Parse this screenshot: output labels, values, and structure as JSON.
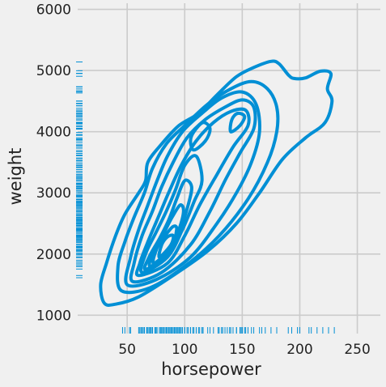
{
  "chart_data": {
    "type": "kde_contour_with_rugplots",
    "title": "",
    "xlabel": "horsepower",
    "ylabel": "weight",
    "xlim": [
      7,
      270
    ],
    "ylim": [
      700,
      6100
    ],
    "xticks": [
      50,
      100,
      150,
      200,
      250
    ],
    "yticks": [
      1000,
      2000,
      3000,
      4000,
      5000,
      6000
    ],
    "grid": true,
    "line_color": "#008fd5",
    "background": "#f0f0f0",
    "grid_color": "#cbcbcb",
    "contours": [
      {
        "level": 1,
        "points": [
          [
            30,
            1200
          ],
          [
            40,
            1180
          ],
          [
            60,
            1300
          ],
          [
            90,
            1650
          ],
          [
            120,
            2050
          ],
          [
            145,
            2500
          ],
          [
            165,
            3000
          ],
          [
            185,
            3550
          ],
          [
            205,
            3900
          ],
          [
            222,
            4150
          ],
          [
            228,
            4500
          ],
          [
            224,
            4700
          ],
          [
            227,
            4950
          ],
          [
            218,
            4990
          ],
          [
            205,
            4880
          ],
          [
            195,
            4870
          ],
          [
            190,
            4930
          ],
          [
            182,
            5110
          ],
          [
            175,
            5150
          ],
          [
            160,
            5050
          ],
          [
            145,
            4900
          ],
          [
            128,
            4600
          ],
          [
            112,
            4300
          ],
          [
            95,
            4100
          ],
          [
            80,
            3800
          ],
          [
            68,
            3500
          ],
          [
            66,
            3200
          ],
          [
            60,
            3000
          ],
          [
            48,
            2650
          ],
          [
            40,
            2300
          ],
          [
            32,
            1850
          ],
          [
            27,
            1500
          ]
        ]
      },
      {
        "level": 2,
        "points": [
          [
            45,
            1400
          ],
          [
            70,
            1450
          ],
          [
            100,
            1800
          ],
          [
            130,
            2300
          ],
          [
            155,
            2900
          ],
          [
            172,
            3500
          ],
          [
            180,
            4000
          ],
          [
            180,
            4400
          ],
          [
            172,
            4700
          ],
          [
            158,
            4820
          ],
          [
            140,
            4700
          ],
          [
            120,
            4450
          ],
          [
            100,
            4100
          ],
          [
            84,
            3800
          ],
          [
            72,
            3400
          ],
          [
            65,
            3000
          ],
          [
            56,
            2600
          ],
          [
            48,
            2200
          ],
          [
            42,
            1800
          ]
        ]
      },
      {
        "level": 3,
        "points": [
          [
            50,
            1500
          ],
          [
            75,
            1580
          ],
          [
            105,
            1950
          ],
          [
            128,
            2500
          ],
          [
            145,
            3000
          ],
          [
            158,
            3500
          ],
          [
            165,
            4000
          ],
          [
            162,
            4450
          ],
          [
            150,
            4650
          ],
          [
            132,
            4550
          ],
          [
            115,
            4300
          ],
          [
            98,
            4000
          ],
          [
            85,
            3600
          ],
          [
            76,
            3200
          ],
          [
            68,
            2800
          ],
          [
            60,
            2400
          ],
          [
            53,
            1950
          ]
        ]
      },
      {
        "level": 4,
        "points": [
          [
            55,
            1550
          ],
          [
            80,
            1700
          ],
          [
            105,
            2150
          ],
          [
            122,
            2700
          ],
          [
            135,
            3200
          ],
          [
            148,
            3650
          ],
          [
            160,
            4050
          ],
          [
            160,
            4400
          ],
          [
            150,
            4520
          ],
          [
            135,
            4400
          ],
          [
            118,
            4200
          ],
          [
            102,
            3900
          ],
          [
            90,
            3500
          ],
          [
            80,
            3100
          ],
          [
            72,
            2700
          ],
          [
            63,
            2300
          ],
          [
            56,
            1850
          ]
        ]
      },
      {
        "level": 5,
        "points": [
          [
            60,
            1650
          ],
          [
            85,
            1850
          ],
          [
            100,
            2300
          ],
          [
            113,
            2800
          ],
          [
            128,
            3300
          ],
          [
            142,
            3750
          ],
          [
            155,
            4100
          ],
          [
            153,
            4350
          ],
          [
            140,
            4330
          ],
          [
            125,
            4150
          ],
          [
            110,
            3850
          ],
          [
            97,
            3450
          ],
          [
            86,
            3000
          ],
          [
            77,
            2600
          ],
          [
            68,
            2200
          ],
          [
            61,
            1850
          ]
        ]
      },
      {
        "level": 6,
        "points": [
          [
            63,
            1700
          ],
          [
            85,
            1950
          ],
          [
            98,
            2400
          ],
          [
            108,
            2850
          ],
          [
            115,
            3200
          ],
          [
            110,
            3600
          ],
          [
            100,
            3450
          ],
          [
            92,
            3050
          ],
          [
            84,
            2700
          ],
          [
            75,
            2350
          ],
          [
            66,
            2000
          ]
        ]
      },
      {
        "level": 7,
        "points": [
          [
            66,
            1750
          ],
          [
            86,
            2000
          ],
          [
            96,
            2400
          ],
          [
            103,
            2800
          ],
          [
            106,
            3100
          ],
          [
            100,
            3200
          ],
          [
            93,
            2900
          ],
          [
            86,
            2550
          ],
          [
            78,
            2250
          ],
          [
            69,
            1950
          ]
        ]
      },
      {
        "level": 8,
        "points": [
          [
            70,
            1800
          ],
          [
            87,
            2050
          ],
          [
            95,
            2400
          ],
          [
            99,
            2700
          ],
          [
            96,
            2800
          ],
          [
            89,
            2600
          ],
          [
            82,
            2350
          ],
          [
            73,
            2050
          ]
        ]
      },
      {
        "level": 9,
        "points": [
          [
            73,
            1850
          ],
          [
            88,
            2100
          ],
          [
            93,
            2400
          ],
          [
            90,
            2450
          ],
          [
            83,
            2300
          ],
          [
            76,
            2100
          ]
        ]
      },
      {
        "level": 10,
        "points": [
          [
            78,
            1950
          ],
          [
            88,
            2150
          ],
          [
            90,
            2300
          ],
          [
            85,
            2280
          ],
          [
            80,
            2150
          ]
        ]
      },
      {
        "level": 11,
        "points": [
          [
            140,
            4000
          ],
          [
            148,
            4100
          ],
          [
            152,
            4250
          ],
          [
            146,
            4300
          ],
          [
            141,
            4200
          ]
        ]
      },
      {
        "level": 12,
        "points": [
          [
            108,
            3700
          ],
          [
            118,
            3850
          ],
          [
            122,
            4050
          ],
          [
            116,
            4150
          ],
          [
            108,
            4000
          ],
          [
            105,
            3850
          ]
        ]
      }
    ],
    "rug_x": [
      46,
      48,
      52,
      53,
      60,
      61,
      62,
      63,
      64,
      65,
      65,
      67,
      67,
      68,
      69,
      70,
      70,
      71,
      72,
      72,
      74,
      75,
      75,
      76,
      78,
      78,
      79,
      80,
      80,
      81,
      82,
      83,
      84,
      85,
      85,
      86,
      87,
      88,
      88,
      89,
      90,
      90,
      91,
      92,
      92,
      93,
      94,
      95,
      95,
      96,
      97,
      97,
      98,
      100,
      100,
      102,
      103,
      105,
      105,
      107,
      108,
      110,
      110,
      112,
      113,
      115,
      115,
      116,
      120,
      122,
      125,
      129,
      130,
      132,
      133,
      135,
      137,
      139,
      140,
      142,
      145,
      145,
      148,
      149,
      150,
      150,
      152,
      153,
      155,
      158,
      160,
      165,
      167,
      170,
      175,
      180,
      190,
      193,
      198,
      200,
      208,
      210,
      215,
      220,
      225,
      230
    ],
    "rug_y": [
      1613,
      1649,
      1755,
      1795,
      1800,
      1825,
      1850,
      1875,
      1900,
      1940,
      1955,
      1985,
      2000,
      2020,
      2045,
      2050,
      2065,
      2075,
      2100,
      2110,
      2120,
      2130,
      2155,
      2164,
      2190,
      2200,
      2220,
      2226,
      2234,
      2250,
      2265,
      2278,
      2290,
      2300,
      2310,
      2330,
      2350,
      2370,
      2380,
      2395,
      2401,
      2415,
      2430,
      2450,
      2465,
      2472,
      2490,
      2500,
      2515,
      2530,
      2545,
      2560,
      2575,
      2590,
      2600,
      2620,
      2635,
      2648,
      2670,
      2690,
      2700,
      2720,
      2740,
      2755,
      2774,
      2790,
      2800,
      2815,
      2830,
      2845,
      2855,
      2870,
      2890,
      2900,
      2930,
      2945,
      2957,
      2965,
      2990,
      3015,
      3035,
      3060,
      3070,
      3085,
      3102,
      3120,
      3139,
      3150,
      3160,
      3190,
      3210,
      3230,
      3245,
      3265,
      3282,
      3302,
      3329,
      3353,
      3380,
      3410,
      3425,
      3445,
      3465,
      3490,
      3520,
      3535,
      3563,
      3570,
      3607,
      3620,
      3645,
      3672,
      3693,
      3730,
      3755,
      3777,
      3785,
      3820,
      3850,
      3870,
      3880,
      3900,
      3940,
      3955,
      3988,
      4042,
      4055,
      4080,
      4100,
      4129,
      4141,
      4154,
      4190,
      4209,
      4237,
      4257,
      4274,
      4294,
      4312,
      4335,
      4354,
      4382,
      4422,
      4425,
      4456,
      4464,
      4499,
      4502,
      4633,
      4654,
      4668,
      4699,
      4732,
      4735,
      4906,
      4951,
      4955,
      4997,
      5140
    ]
  }
}
